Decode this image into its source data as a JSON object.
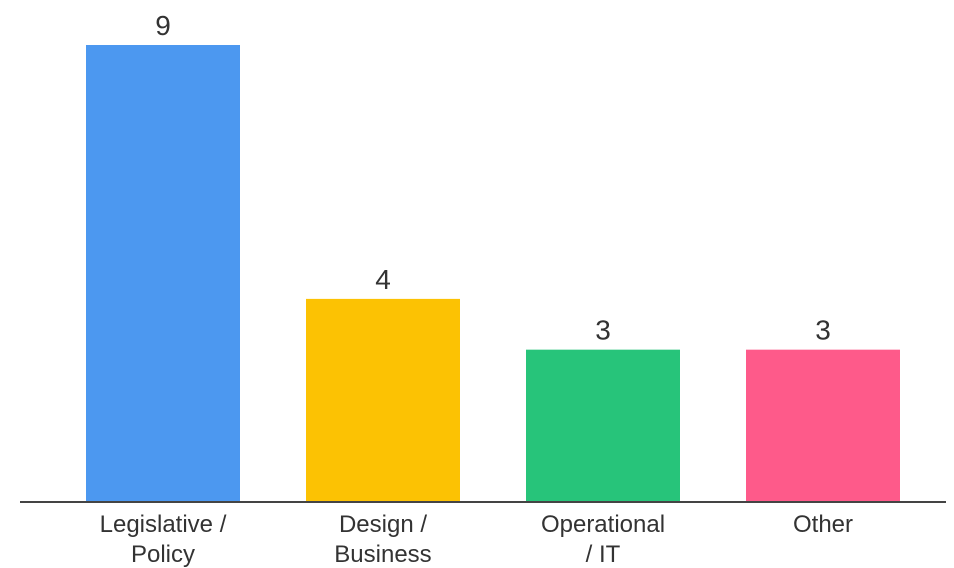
{
  "chart_data": {
    "type": "bar",
    "categories": [
      [
        "Legislative /",
        "Policy"
      ],
      [
        "Design /",
        "Business"
      ],
      [
        "Operational",
        "/ IT"
      ],
      [
        "Other"
      ]
    ],
    "values": [
      9,
      4,
      3,
      3
    ],
    "value_labels": [
      "9",
      "4",
      "3",
      "3"
    ],
    "colors": [
      "#4c98f0",
      "#fcc203",
      "#27c47a",
      "#fe5a8a"
    ],
    "axis_color": "#444444",
    "ylim": [
      0,
      9
    ],
    "grid": false,
    "legend": "none"
  }
}
